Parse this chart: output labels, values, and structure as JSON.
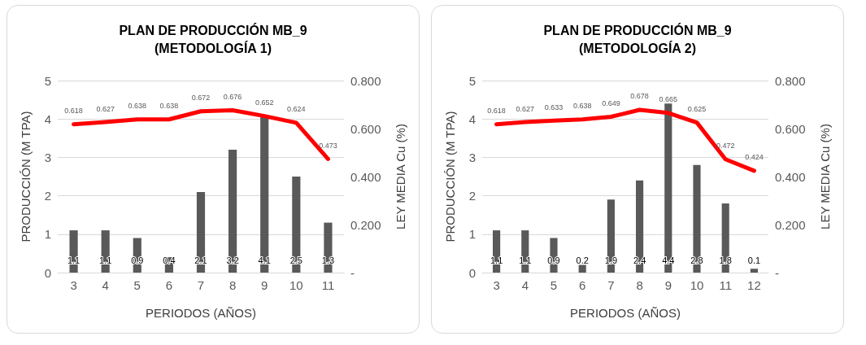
{
  "chart_data": [
    {
      "type": "bar",
      "title": "PLAN DE PRODUCCIÓN MB_9\n(METODOLOGÍA 1)",
      "xlabel": "PERIODOS (AÑOS)",
      "ylabel": "PRODUCCIÓN (M TPA)",
      "y2label": "LEY MEDIA Cu (%)",
      "categories": [
        "3",
        "4",
        "5",
        "6",
        "7",
        "8",
        "9",
        "10",
        "11"
      ],
      "series": [
        {
          "color": "#595959",
          "values": [
            1.1,
            1.1,
            0.9,
            0.4,
            2.1,
            3.2,
            4.1,
            2.5,
            1.3
          ]
        },
        {
          "type": "line",
          "axis": "y2",
          "color": "#ff0000",
          "values": [
            0.618,
            0.627,
            0.638,
            0.638,
            0.672,
            0.676,
            0.652,
            0.624,
            0.473
          ]
        }
      ],
      "ylim": [
        0,
        5
      ],
      "yticks": [
        0,
        1,
        2,
        3,
        4,
        5
      ],
      "y2lim": [
        0,
        0.8
      ],
      "y2ticks": [
        {
          "value": 0,
          "label": "-"
        },
        {
          "value": 0.2,
          "label": "0.200"
        },
        {
          "value": 0.4,
          "label": "0.400"
        },
        {
          "value": 0.6,
          "label": "0.600"
        },
        {
          "value": 0.8,
          "label": "0.800"
        }
      ],
      "grid": "y",
      "data_labels": true,
      "marker": "none"
    },
    {
      "type": "bar",
      "title": "PLAN DE PRODUCCIÓN MB_9\n(METODOLOGÍA 2)",
      "xlabel": "PERIODOS (AÑOS)",
      "ylabel": "PRODUCCIÓN (M TPA)",
      "y2label": "LEY MEDIA Cu (%)",
      "categories": [
        "3",
        "4",
        "5",
        "6",
        "7",
        "8",
        "9",
        "10",
        "11",
        "12"
      ],
      "series": [
        {
          "color": "#595959",
          "values": [
            1.1,
            1.1,
            0.9,
            0.2,
            1.9,
            2.4,
            4.4,
            2.8,
            1.8,
            0.1
          ]
        },
        {
          "type": "line",
          "axis": "y2",
          "color": "#ff0000",
          "values": [
            0.618,
            0.627,
            0.633,
            0.638,
            0.649,
            0.678,
            0.665,
            0.625,
            0.472,
            0.424
          ]
        }
      ],
      "ylim": [
        0,
        5
      ],
      "yticks": [
        0,
        1,
        2,
        3,
        4,
        5
      ],
      "y2lim": [
        0,
        0.8
      ],
      "y2ticks": [
        {
          "value": 0,
          "label": "-"
        },
        {
          "value": 0.2,
          "label": "0.200"
        },
        {
          "value": 0.4,
          "label": "0.400"
        },
        {
          "value": 0.6,
          "label": "0.600"
        },
        {
          "value": 0.8,
          "label": "0.800"
        }
      ],
      "grid": "y",
      "data_labels": true,
      "marker": "none"
    }
  ]
}
